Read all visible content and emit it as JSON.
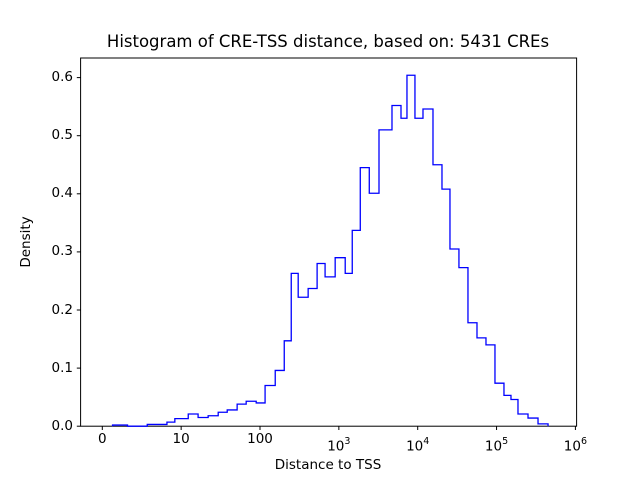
{
  "figure": {
    "title": "Histogram of CRE-TSS distance, based on: 5431 CREs",
    "x_axis_label": "Distance to TSS",
    "y_axis_label": "Density",
    "n_cres": 5431
  },
  "chart_data": {
    "type": "bar",
    "subtype": "histogram-step-outline",
    "title": "Histogram of CRE-TSS distance, based on: 5431 CREs",
    "xlabel": "Distance to TSS",
    "ylabel": "Density",
    "x_scale": "symlog",
    "x_linthresh": 10,
    "ylim": [
      0,
      0.634
    ],
    "grid": false,
    "legend_position": "none",
    "line_color": "#0000ff",
    "axis_color": "#000000",
    "background_color": "#ffffff",
    "xticks": [
      {
        "label": "0",
        "value": 0
      },
      {
        "label": "10",
        "value": 10
      },
      {
        "label": "100",
        "value": 100
      },
      {
        "base": "10",
        "exp": "3",
        "value": 1000
      },
      {
        "base": "10",
        "exp": "4",
        "value": 10000
      },
      {
        "base": "10",
        "exp": "5",
        "value": 100000
      },
      {
        "base": "10",
        "exp": "6",
        "value": 1000000
      }
    ],
    "yticks": [
      {
        "label": "0.0",
        "value": 0.0
      },
      {
        "label": "0.1",
        "value": 0.1
      },
      {
        "label": "0.2",
        "value": 0.2
      },
      {
        "label": "0.3",
        "value": 0.3
      },
      {
        "label": "0.4",
        "value": 0.4
      },
      {
        "label": "0.5",
        "value": 0.5
      },
      {
        "label": "0.6",
        "value": 0.6
      }
    ],
    "bins_format": [
      "x_start",
      "x_end",
      "density"
    ],
    "bins": [
      [
        1.3,
        3.2,
        0.002
      ],
      [
        3.2,
        5.7,
        0.0
      ],
      [
        5.7,
        8.2,
        0.003
      ],
      [
        8.2,
        9.2,
        0.007
      ],
      [
        9.2,
        12.3,
        0.013
      ],
      [
        12.3,
        16.4,
        0.021
      ],
      [
        16.4,
        22.0,
        0.015
      ],
      [
        22.0,
        29.5,
        0.018
      ],
      [
        29.5,
        38.4,
        0.024
      ],
      [
        38.4,
        51.3,
        0.028
      ],
      [
        51.3,
        66.8,
        0.038
      ],
      [
        66.8,
        89.5,
        0.043
      ],
      [
        89.5,
        116,
        0.04
      ],
      [
        116,
        156,
        0.07
      ],
      [
        156,
        203,
        0.096
      ],
      [
        203,
        249,
        0.147
      ],
      [
        249,
        305,
        0.263
      ],
      [
        305,
        408,
        0.222
      ],
      [
        408,
        530,
        0.237
      ],
      [
        530,
        669,
        0.28
      ],
      [
        669,
        898,
        0.257
      ],
      [
        898,
        1204,
        0.29
      ],
      [
        1204,
        1479,
        0.263
      ],
      [
        1479,
        1870,
        0.337
      ],
      [
        1870,
        2432,
        0.445
      ],
      [
        2432,
        3230,
        0.401
      ],
      [
        3230,
        4720,
        0.51
      ],
      [
        4720,
        6140,
        0.552
      ],
      [
        6140,
        7310,
        0.53
      ],
      [
        7310,
        9230,
        0.604
      ],
      [
        9230,
        11670,
        0.53
      ],
      [
        11670,
        15630,
        0.546
      ],
      [
        15630,
        20320,
        0.45
      ],
      [
        20320,
        25660,
        0.408
      ],
      [
        25660,
        33340,
        0.305
      ],
      [
        33340,
        43410,
        0.273
      ],
      [
        43410,
        56490,
        0.178
      ],
      [
        56490,
        73450,
        0.152
      ],
      [
        73450,
        95500,
        0.14
      ],
      [
        95500,
        124200,
        0.074
      ],
      [
        124200,
        152400,
        0.053
      ],
      [
        152400,
        187000,
        0.046
      ],
      [
        187000,
        250600,
        0.021
      ],
      [
        250600,
        335700,
        0.014
      ],
      [
        335700,
        449800,
        0.004
      ]
    ]
  }
}
